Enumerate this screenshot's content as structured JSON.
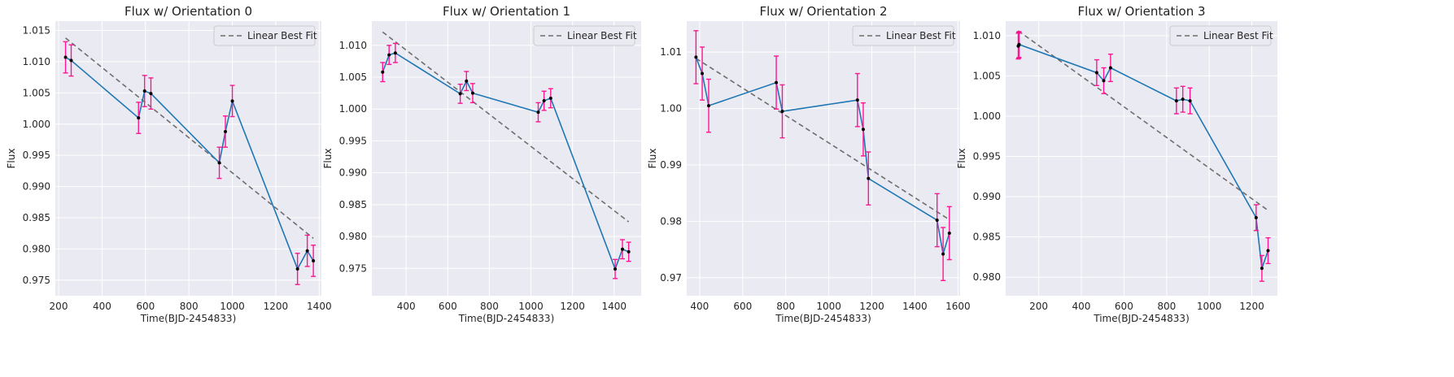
{
  "style": {
    "axes_bg": "#eaeaf2",
    "grid": "#ffffff",
    "line": "#1f77b4",
    "errorbar": "#ff1493",
    "point": "#000000",
    "fit": "#6e6e6e"
  },
  "chart_data": [
    {
      "type": "line",
      "title": "Flux w/ Orientation 0",
      "xlabel": "Time(BJD-2454833)",
      "ylabel": "Flux",
      "xlim": [
        185,
        1410
      ],
      "ylim": [
        0.9725,
        1.0165
      ],
      "xticks": [
        200,
        400,
        600,
        800,
        1000,
        1200,
        1400
      ],
      "yticks": [
        0.975,
        0.98,
        0.985,
        0.99,
        0.995,
        1.0,
        1.005,
        1.01,
        1.015
      ],
      "ytick_labels": [
        "0.975",
        "0.980",
        "0.985",
        "0.990",
        "0.995",
        "1.000",
        "1.005",
        "1.010",
        "1.015"
      ],
      "grid": true,
      "legend": {
        "position": "top-right",
        "entries": [
          "Linear Best Fit"
        ]
      },
      "series": [
        {
          "x": [
            232,
            258,
            568,
            596,
            625,
            940,
            968,
            1000,
            1300,
            1345,
            1373
          ],
          "y": [
            1.0107,
            1.0102,
            1.001,
            1.0053,
            1.0049,
            0.9938,
            0.9988,
            1.0037,
            0.9768,
            0.9797,
            0.9781
          ],
          "yerr": [
            0.0025,
            0.0025,
            0.0025,
            0.0025,
            0.0025,
            0.0025,
            0.0025,
            0.0025,
            0.0025,
            0.0025,
            0.0025
          ]
        }
      ],
      "fit": {
        "x": [
          232,
          1373
        ],
        "y": [
          1.0138,
          0.9817
        ]
      }
    },
    {
      "type": "line",
      "title": "Flux w/ Orientation 1",
      "xlabel": "Time(BJD-2454833)",
      "ylabel": "Flux",
      "xlim": [
        235,
        1530
      ],
      "ylim": [
        0.9707,
        1.0138
      ],
      "xticks": [
        400,
        600,
        800,
        1000,
        1200,
        1400
      ],
      "yticks": [
        0.975,
        0.98,
        0.985,
        0.99,
        0.995,
        1.0,
        1.005,
        1.01
      ],
      "ytick_labels": [
        "0.975",
        "0.980",
        "0.985",
        "0.990",
        "0.995",
        "1.000",
        "1.005",
        "1.010"
      ],
      "grid": true,
      "legend": {
        "position": "top-right",
        "entries": [
          "Linear Best Fit"
        ]
      },
      "series": [
        {
          "x": [
            287,
            318,
            348,
            660,
            690,
            720,
            1035,
            1063,
            1095,
            1405,
            1440,
            1470
          ],
          "y": [
            1.0058,
            1.0085,
            1.0088,
            1.0024,
            1.0044,
            1.0025,
            0.9995,
            1.0013,
            1.0017,
            0.9749,
            0.978,
            0.9776
          ],
          "yerr": [
            0.0015,
            0.0015,
            0.0015,
            0.0015,
            0.0015,
            0.0015,
            0.0015,
            0.0015,
            0.0015,
            0.0015,
            0.0015,
            0.0015
          ]
        }
      ],
      "fit": {
        "x": [
          287,
          1470
        ],
        "y": [
          1.0121,
          0.9823
        ]
      }
    },
    {
      "type": "line",
      "title": "Flux w/ Orientation 2",
      "xlabel": "Time(BJD-2454833)",
      "ylabel": "Flux",
      "xlim": [
        340,
        1610
      ],
      "ylim": [
        0.9668,
        1.0155
      ],
      "xticks": [
        400,
        600,
        800,
        1000,
        1200,
        1400,
        1600
      ],
      "yticks": [
        0.97,
        0.98,
        0.99,
        1.0,
        1.01
      ],
      "ytick_labels": [
        "0.97",
        "0.98",
        "0.99",
        "1.00",
        "1.01"
      ],
      "grid": true,
      "legend": {
        "position": "top-right",
        "entries": [
          "Linear Best Fit"
        ]
      },
      "series": [
        {
          "x": [
            383,
            412,
            442,
            756,
            784,
            1133,
            1160,
            1184,
            1503,
            1531,
            1560
          ],
          "y": [
            1.0091,
            1.0062,
            1.0005,
            1.0046,
            0.9995,
            1.0015,
            0.9963,
            0.9876,
            0.9802,
            0.9742,
            0.9779
          ],
          "yerr": [
            0.0047,
            0.0047,
            0.0047,
            0.0047,
            0.0047,
            0.0047,
            0.0047,
            0.0047,
            0.0047,
            0.0047,
            0.0047
          ]
        }
      ],
      "fit": {
        "x": [
          383,
          1560
        ],
        "y": [
          1.0089,
          0.9803
        ]
      }
    },
    {
      "type": "line",
      "title": "Flux w/ Orientation 3",
      "xlabel": "Time(BJD-2454833)",
      "ylabel": "Flux",
      "xlim": [
        45,
        1320
      ],
      "ylim": [
        0.9777,
        1.0118
      ],
      "xticks": [
        200,
        400,
        600,
        800,
        1000,
        1200
      ],
      "yticks": [
        0.98,
        0.985,
        0.99,
        0.995,
        1.0,
        1.005,
        1.01
      ],
      "ytick_labels": [
        "0.980",
        "0.985",
        "0.990",
        "0.995",
        "1.000",
        "1.005",
        "1.010"
      ],
      "grid": true,
      "legend": {
        "position": "top-right",
        "entries": [
          "Linear Best Fit"
        ]
      },
      "series": [
        {
          "x": [
            104,
            106,
            108,
            472,
            505,
            537,
            846,
            876,
            910,
            1220,
            1247,
            1276
          ],
          "y": [
            1.0087,
            1.0088,
            1.0089,
            1.0054,
            1.0044,
            1.006,
            1.0019,
            1.0021,
            1.0019,
            0.9874,
            0.9811,
            0.9833
          ],
          "yerr": [
            0.0016,
            0.0016,
            0.0016,
            0.0016,
            0.0016,
            0.0017,
            0.0016,
            0.0016,
            0.0016,
            0.0016,
            0.0016,
            0.0016
          ]
        }
      ],
      "fit": {
        "x": [
          104,
          1276
        ],
        "y": [
          1.0106,
          0.9883
        ]
      }
    }
  ]
}
